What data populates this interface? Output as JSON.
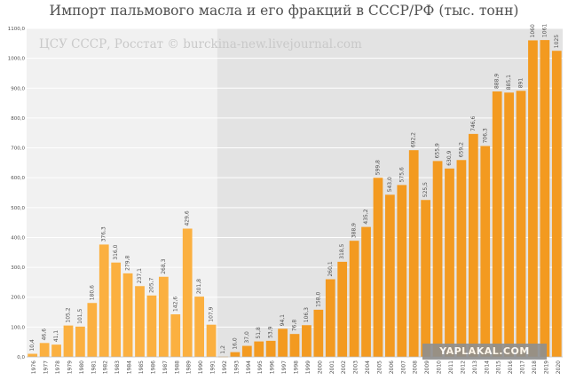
{
  "title": "Импорт пальмового масла и его фракций в СССР/РФ (тыс. тонн)",
  "source": "ЦСУ СССР, Росстат © burckina-new.livejournal.com",
  "watermark": "YAPLAKAL.COM",
  "colors": {
    "ussr_bar": "#fbb040",
    "rf_bar": "#f39a20",
    "ussr_bg": "#f1f1f1",
    "rf_bg": "#e3e3e3",
    "label": "#505050"
  },
  "chart_data": {
    "type": "bar",
    "title": "Импорт пальмового масла и его фракций в СССР/РФ (тыс. тонн)",
    "xlabel": "",
    "ylabel": "",
    "ylim": [
      0,
      1100
    ],
    "yticks": [
      "0,0",
      "100,0",
      "200,0",
      "300,0",
      "400,0",
      "500,0",
      "600,0",
      "700,0",
      "800,0",
      "900,0",
      "1000,0",
      "1100,0"
    ],
    "grid": true,
    "categories": [
      "1976",
      "1977",
      "1978",
      "1979",
      "1980",
      "1981",
      "1982",
      "1983",
      "1984",
      "1985",
      "1986",
      "1987",
      "1988",
      "1989",
      "1990",
      "1991",
      "1992",
      "1993",
      "1994",
      "1995",
      "1996",
      "1997",
      "1998",
      "1999",
      "2000",
      "2001",
      "2002",
      "2003",
      "2004",
      "2005",
      "2006",
      "2007",
      "2008",
      "2009",
      "2010",
      "2011",
      "2012",
      "2013",
      "2014",
      "2015",
      "2016",
      "2017",
      "2018",
      "2019",
      "2020"
    ],
    "values": [
      10.4,
      46.6,
      41.1,
      105.2,
      101.5,
      180.6,
      376.3,
      316.0,
      279.8,
      237.1,
      205.7,
      268.3,
      142.6,
      429.6,
      201.8,
      107.9,
      1.2,
      16.0,
      37.0,
      51.8,
      53.9,
      94.1,
      76.8,
      106.3,
      158.0,
      260.1,
      318.5,
      388.9,
      435.2,
      599.8,
      543.0,
      575.6,
      692.2,
      525.5,
      655.9,
      630.9,
      659.2,
      746.6,
      706.3,
      888.9,
      885.1,
      891,
      1060,
      1061,
      1025
    ],
    "labels": [
      "10,4",
      "46,6",
      "41,1",
      "105,2",
      "101,5",
      "180,6",
      "376,3",
      "316,0",
      "279,8",
      "237,1",
      "205,7",
      "268,3",
      "142,6",
      "429,6",
      "201,8",
      "107,9",
      "1,2",
      "16,0",
      "37,0",
      "51,8",
      "53,9",
      "94,1",
      "76,8",
      "106,3",
      "158,0",
      "260,1",
      "318,5",
      "388,9",
      "435,2",
      "599,8",
      "543,0",
      "575,6",
      "692,2",
      "525,5",
      "655,9",
      "630,9",
      "659,2",
      "746,6",
      "706,3",
      "888,9",
      "885,1",
      "891",
      "1060",
      "1061",
      "1025"
    ],
    "periods": [
      {
        "name": "СССР",
        "from": "1976",
        "to": "1991"
      },
      {
        "name": "РФ",
        "from": "1992",
        "to": "2020"
      }
    ]
  }
}
